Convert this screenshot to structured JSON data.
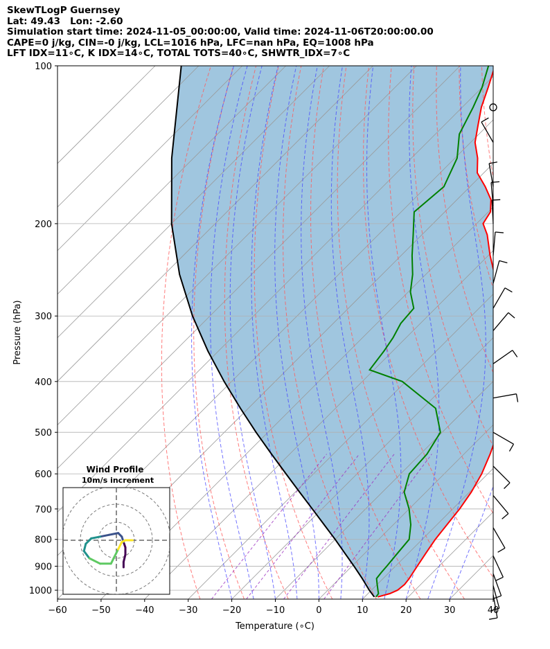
{
  "header": {
    "line1": "SkewTLogP Guernsey",
    "line2": "Lat: 49.43   Lon: -2.60",
    "line3": "Simulation start time: 2024-11-05_00:00:00, Valid time: 2024-11-06T20:00:00.00",
    "line4": "CAPE=0 j/kg, CIN=-0 j/kg, LCL=1016 hPa, LFC=nan hPa, EQ=1008 hPa",
    "line5": "LFT IDX=11∘C, K IDX=14∘C, TOTAL TOTS=40∘C, SHWTR_IDX=7∘C"
  },
  "chart_data": {
    "type": "line",
    "title": "SkewTLogP Guernsey",
    "xlabel": "Temperature (∘C)",
    "ylabel": "Pressure (hPa)",
    "xlim": [
      -60,
      40
    ],
    "ylim": [
      1040,
      100
    ],
    "y_scale": "log",
    "skew": "45 degrees",
    "grid": true,
    "x_ticks": [
      "−60",
      "−50",
      "−40",
      "−30",
      "−20",
      "−10",
      "0",
      "10",
      "20",
      "30",
      "40"
    ],
    "y_ticks": [
      "100",
      "200",
      "300",
      "400",
      "500",
      "600",
      "700",
      "800",
      "900",
      "1000"
    ],
    "colors": {
      "temperature": "#ff0000",
      "dewpoint": "#008000",
      "parcel": "#000000",
      "shade": "#a0c6df",
      "dry_adiabats": "#ff5a5a",
      "moist_adiabats": "#4444ff",
      "mixing_ratio": "#9b30c0",
      "isotherms": "#999999"
    },
    "series": [
      {
        "name": "temperature",
        "points": [
          [
            1030,
            13
          ],
          [
            1015,
            15
          ],
          [
            1000,
            16
          ],
          [
            975,
            16.3
          ],
          [
            950,
            16
          ],
          [
            925,
            15.5
          ],
          [
            900,
            15
          ],
          [
            850,
            14
          ],
          [
            800,
            13
          ],
          [
            750,
            12.3
          ],
          [
            700,
            11.6
          ],
          [
            650,
            10.4
          ],
          [
            600,
            8.6
          ],
          [
            550,
            6
          ],
          [
            500,
            2.8
          ],
          [
            450,
            -1.2
          ],
          [
            400,
            -6
          ],
          [
            350,
            -13.3
          ],
          [
            300,
            -22.8
          ],
          [
            270,
            -29.6
          ],
          [
            250,
            -34.2
          ],
          [
            230,
            -39.6
          ],
          [
            210,
            -45
          ],
          [
            200,
            -48.5
          ],
          [
            190,
            -49.5
          ],
          [
            180,
            -52.2
          ],
          [
            170,
            -56.5
          ],
          [
            160,
            -61.5
          ],
          [
            150,
            -64.8
          ],
          [
            140,
            -69
          ],
          [
            130,
            -72.2
          ],
          [
            120,
            -75.6
          ],
          [
            110,
            -78.6
          ],
          [
            100,
            -82
          ]
        ]
      },
      {
        "name": "dewpoint",
        "points": [
          [
            1030,
            12.6
          ],
          [
            1015,
            12.4
          ],
          [
            1000,
            11.5
          ],
          [
            975,
            10
          ],
          [
            950,
            8.5
          ],
          [
            925,
            8.2
          ],
          [
            900,
            8
          ],
          [
            850,
            7.5
          ],
          [
            800,
            7
          ],
          [
            750,
            4
          ],
          [
            700,
            0
          ],
          [
            650,
            -5
          ],
          [
            600,
            -8
          ],
          [
            550,
            -8.5
          ],
          [
            500,
            -10.4
          ],
          [
            450,
            -17
          ],
          [
            400,
            -30.8
          ],
          [
            380,
            -41
          ],
          [
            350,
            -42
          ],
          [
            330,
            -43
          ],
          [
            310,
            -44.5
          ],
          [
            290,
            -45
          ],
          [
            270,
            -49.5
          ],
          [
            250,
            -53
          ],
          [
            230,
            -57.5
          ],
          [
            210,
            -62
          ],
          [
            190,
            -67
          ],
          [
            170,
            -66
          ],
          [
            150,
            -69.5
          ],
          [
            135,
            -74.5
          ],
          [
            120,
            -77.5
          ],
          [
            110,
            -80
          ],
          [
            100,
            -83.5
          ]
        ]
      },
      {
        "name": "parcel",
        "points": [
          [
            1030,
            12.2
          ],
          [
            1000,
            9.5
          ],
          [
            950,
            5.2
          ],
          [
            900,
            0.5
          ],
          [
            850,
            -4.6
          ],
          [
            800,
            -10
          ],
          [
            750,
            -15.9
          ],
          [
            700,
            -22.2
          ],
          [
            650,
            -29
          ],
          [
            600,
            -36.3
          ],
          [
            550,
            -44.2
          ],
          [
            500,
            -52.7
          ],
          [
            450,
            -61.8
          ],
          [
            400,
            -71.7
          ],
          [
            350,
            -82.4
          ],
          [
            300,
            -94
          ],
          [
            250,
            -106.5
          ],
          [
            200,
            -120
          ],
          [
            150,
            -135
          ],
          [
            100,
            -154
          ]
        ]
      }
    ],
    "wind_barbs_hPa": [
      120,
      140,
      170,
      185,
      200,
      230,
      260,
      290,
      320,
      370,
      430,
      500,
      580,
      660,
      760,
      860,
      930,
      980,
      1020
    ],
    "inset": {
      "title": "Wind Profile",
      "subtitle": "10m/s increment",
      "hodograph": [
        [
          4,
          -15
        ],
        [
          4,
          -12
        ],
        [
          5,
          -8
        ],
        [
          5,
          -4
        ],
        [
          4,
          -1
        ],
        [
          3,
          2
        ],
        [
          1,
          4
        ],
        [
          -4,
          3
        ],
        [
          -9,
          2
        ],
        [
          -14,
          1
        ],
        [
          -17,
          -2
        ],
        [
          -18,
          -6
        ],
        [
          -15,
          -10
        ],
        [
          -9,
          -13
        ],
        [
          -3,
          -13
        ],
        [
          -1,
          -9
        ],
        [
          1,
          -5
        ],
        [
          3,
          -1
        ],
        [
          5,
          0
        ],
        [
          8,
          0
        ],
        [
          9,
          0
        ]
      ]
    }
  }
}
